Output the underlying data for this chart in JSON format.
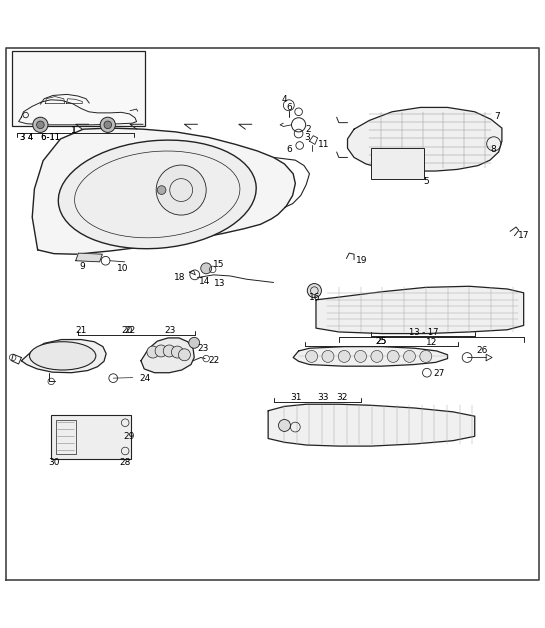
{
  "bg_color": "#ffffff",
  "line_color": "#222222",
  "fig_width": 5.45,
  "fig_height": 6.28,
  "dpi": 100
}
